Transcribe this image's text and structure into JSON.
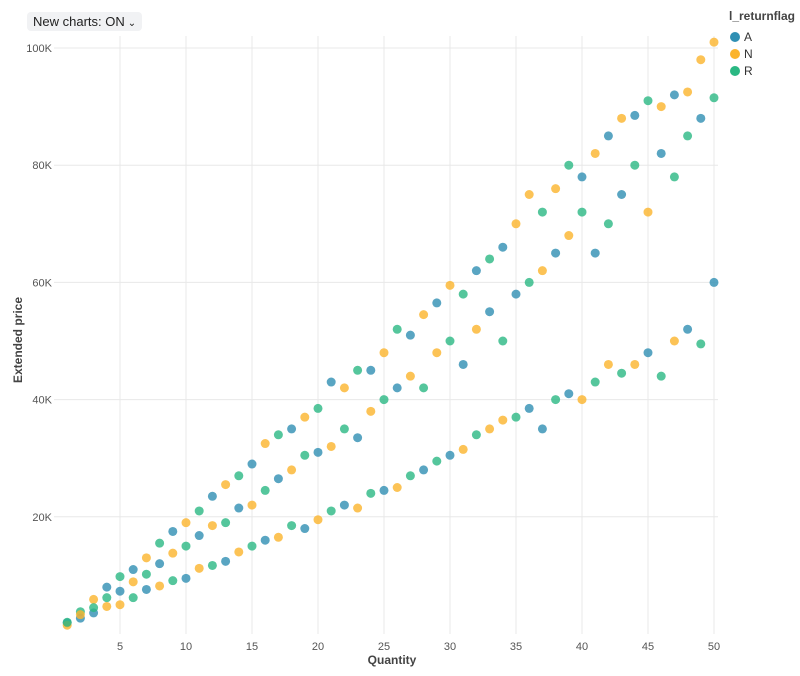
{
  "toggle": {
    "label": "New charts: ON"
  },
  "chart_data": {
    "type": "scatter",
    "xlabel": "Quantity",
    "ylabel": "Extended price",
    "xlim": [
      0,
      50
    ],
    "ylim": [
      0,
      100000
    ],
    "xticks": [
      {
        "v": 5,
        "label": "5"
      },
      {
        "v": 10,
        "label": "10"
      },
      {
        "v": 15,
        "label": "15"
      },
      {
        "v": 20,
        "label": "20"
      },
      {
        "v": 25,
        "label": "25"
      },
      {
        "v": 30,
        "label": "30"
      },
      {
        "v": 35,
        "label": "35"
      },
      {
        "v": 40,
        "label": "40"
      },
      {
        "v": 45,
        "label": "45"
      },
      {
        "v": 50,
        "label": "50"
      }
    ],
    "yticks": [
      {
        "v": 20000,
        "label": "20K"
      },
      {
        "v": 40000,
        "label": "40K"
      },
      {
        "v": 60000,
        "label": "60K"
      },
      {
        "v": 80000,
        "label": "80K"
      },
      {
        "v": 100000,
        "label": "100K"
      }
    ],
    "grid": true,
    "legend": {
      "title": "l_returnflag",
      "placement": "top-right"
    },
    "series": [
      {
        "name": "A",
        "color": "#2f8fb3"
      },
      {
        "name": "N",
        "color": "#fbb42c"
      },
      {
        "name": "R",
        "color": "#2ab883"
      }
    ],
    "points": [
      [
        1,
        1900,
        "A"
      ],
      [
        1,
        1500,
        "N"
      ],
      [
        1,
        2000,
        "R"
      ],
      [
        2,
        3800,
        "R"
      ],
      [
        2,
        2700,
        "A"
      ],
      [
        2,
        3300,
        "N"
      ],
      [
        3,
        5900,
        "N"
      ],
      [
        3,
        3600,
        "A"
      ],
      [
        3,
        4500,
        "R"
      ],
      [
        4,
        8000,
        "A"
      ],
      [
        4,
        4700,
        "N"
      ],
      [
        4,
        6200,
        "R"
      ],
      [
        5,
        9800,
        "R"
      ],
      [
        5,
        5000,
        "N"
      ],
      [
        5,
        7300,
        "A"
      ],
      [
        6,
        11000,
        "A"
      ],
      [
        6,
        6200,
        "R"
      ],
      [
        6,
        8900,
        "N"
      ],
      [
        7,
        13000,
        "N"
      ],
      [
        7,
        7600,
        "A"
      ],
      [
        7,
        10200,
        "R"
      ],
      [
        8,
        15500,
        "R"
      ],
      [
        8,
        8200,
        "N"
      ],
      [
        8,
        12000,
        "A"
      ],
      [
        9,
        17500,
        "A"
      ],
      [
        9,
        9100,
        "R"
      ],
      [
        9,
        13800,
        "N"
      ],
      [
        10,
        19000,
        "N"
      ],
      [
        10,
        9500,
        "A"
      ],
      [
        10,
        15000,
        "R"
      ],
      [
        11,
        21000,
        "R"
      ],
      [
        11,
        11200,
        "N"
      ],
      [
        11,
        16800,
        "A"
      ],
      [
        12,
        23500,
        "A"
      ],
      [
        12,
        11700,
        "R"
      ],
      [
        12,
        18500,
        "N"
      ],
      [
        13,
        25500,
        "N"
      ],
      [
        13,
        12400,
        "A"
      ],
      [
        13,
        19000,
        "R"
      ],
      [
        14,
        27000,
        "R"
      ],
      [
        14,
        14000,
        "N"
      ],
      [
        14,
        21500,
        "A"
      ],
      [
        15,
        29000,
        "A"
      ],
      [
        15,
        15000,
        "R"
      ],
      [
        15,
        22000,
        "N"
      ],
      [
        16,
        32500,
        "N"
      ],
      [
        16,
        16000,
        "A"
      ],
      [
        16,
        24500,
        "R"
      ],
      [
        17,
        34000,
        "R"
      ],
      [
        17,
        16500,
        "N"
      ],
      [
        17,
        26500,
        "A"
      ],
      [
        18,
        35000,
        "A"
      ],
      [
        18,
        18500,
        "R"
      ],
      [
        18,
        28000,
        "N"
      ],
      [
        19,
        37000,
        "N"
      ],
      [
        19,
        18000,
        "A"
      ],
      [
        19,
        30500,
        "R"
      ],
      [
        20,
        38500,
        "R"
      ],
      [
        20,
        19500,
        "N"
      ],
      [
        20,
        31000,
        "A"
      ],
      [
        21,
        43000,
        "A"
      ],
      [
        21,
        21000,
        "R"
      ],
      [
        21,
        32000,
        "N"
      ],
      [
        22,
        42000,
        "N"
      ],
      [
        22,
        22000,
        "A"
      ],
      [
        22,
        35000,
        "R"
      ],
      [
        23,
        45000,
        "R"
      ],
      [
        23,
        21500,
        "N"
      ],
      [
        23,
        33500,
        "A"
      ],
      [
        24,
        45000,
        "A"
      ],
      [
        24,
        24000,
        "R"
      ],
      [
        24,
        38000,
        "N"
      ],
      [
        25,
        48000,
        "N"
      ],
      [
        25,
        24500,
        "A"
      ],
      [
        25,
        40000,
        "R"
      ],
      [
        26,
        52000,
        "R"
      ],
      [
        26,
        25000,
        "N"
      ],
      [
        26,
        42000,
        "A"
      ],
      [
        27,
        51000,
        "A"
      ],
      [
        27,
        27000,
        "R"
      ],
      [
        27,
        44000,
        "N"
      ],
      [
        28,
        54500,
        "N"
      ],
      [
        28,
        28000,
        "A"
      ],
      [
        28,
        42000,
        "R"
      ],
      [
        29,
        56500,
        "A"
      ],
      [
        29,
        29500,
        "R"
      ],
      [
        29,
        48000,
        "N"
      ],
      [
        30,
        59500,
        "N"
      ],
      [
        30,
        30500,
        "A"
      ],
      [
        30,
        50000,
        "R"
      ],
      [
        31,
        58000,
        "R"
      ],
      [
        31,
        31500,
        "N"
      ],
      [
        31,
        46000,
        "A"
      ],
      [
        32,
        62000,
        "A"
      ],
      [
        32,
        34000,
        "R"
      ],
      [
        32,
        52000,
        "N"
      ],
      [
        33,
        64000,
        "R"
      ],
      [
        33,
        35000,
        "N"
      ],
      [
        33,
        55000,
        "A"
      ],
      [
        34,
        66000,
        "A"
      ],
      [
        34,
        36500,
        "N"
      ],
      [
        34,
        50000,
        "R"
      ],
      [
        35,
        70000,
        "N"
      ],
      [
        35,
        37000,
        "R"
      ],
      [
        35,
        58000,
        "A"
      ],
      [
        36,
        75000,
        "N"
      ],
      [
        36,
        38500,
        "A"
      ],
      [
        36,
        60000,
        "R"
      ],
      [
        37,
        72000,
        "R"
      ],
      [
        37,
        35000,
        "A"
      ],
      [
        37,
        62000,
        "N"
      ],
      [
        38,
        76000,
        "N"
      ],
      [
        38,
        40000,
        "R"
      ],
      [
        38,
        65000,
        "A"
      ],
      [
        39,
        80000,
        "R"
      ],
      [
        39,
        41000,
        "A"
      ],
      [
        39,
        68000,
        "N"
      ],
      [
        40,
        78000,
        "A"
      ],
      [
        40,
        40000,
        "N"
      ],
      [
        40,
        72000,
        "R"
      ],
      [
        41,
        82000,
        "N"
      ],
      [
        41,
        43000,
        "R"
      ],
      [
        41,
        65000,
        "A"
      ],
      [
        42,
        85000,
        "A"
      ],
      [
        42,
        46000,
        "N"
      ],
      [
        42,
        70000,
        "R"
      ],
      [
        43,
        88000,
        "N"
      ],
      [
        43,
        44500,
        "R"
      ],
      [
        43,
        75000,
        "A"
      ],
      [
        44,
        88500,
        "A"
      ],
      [
        44,
        46000,
        "N"
      ],
      [
        44,
        80000,
        "R"
      ],
      [
        45,
        91000,
        "R"
      ],
      [
        45,
        48000,
        "A"
      ],
      [
        45,
        72000,
        "N"
      ],
      [
        46,
        90000,
        "N"
      ],
      [
        46,
        44000,
        "R"
      ],
      [
        46,
        82000,
        "A"
      ],
      [
        47,
        92000,
        "A"
      ],
      [
        47,
        50000,
        "N"
      ],
      [
        47,
        78000,
        "R"
      ],
      [
        48,
        92500,
        "N"
      ],
      [
        48,
        52000,
        "A"
      ],
      [
        48,
        85000,
        "R"
      ],
      [
        49,
        98000,
        "N"
      ],
      [
        49,
        49500,
        "R"
      ],
      [
        49,
        88000,
        "A"
      ],
      [
        50,
        101000,
        "N"
      ],
      [
        50,
        60000,
        "A"
      ],
      [
        50,
        91500,
        "R"
      ]
    ]
  }
}
